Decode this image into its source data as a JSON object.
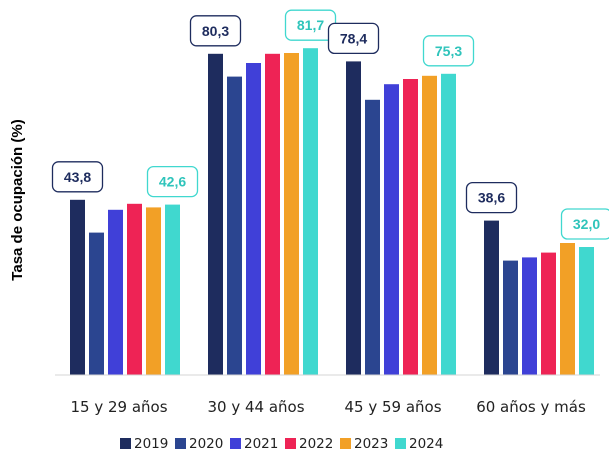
{
  "chart_data": {
    "type": "bar",
    "title": "",
    "xlabel": "",
    "ylabel": "Tasa de ocupación (%)",
    "ylim": [
      0,
      90
    ],
    "grid": false,
    "legend_position": "bottom",
    "categories": [
      "15 y 29 años",
      "30 y 44 años",
      "45 y 59 años",
      "60 años y más"
    ],
    "series": [
      {
        "name": "2019",
        "color": "#1e2c5e",
        "values": [
          43.8,
          80.3,
          78.4,
          38.6
        ]
      },
      {
        "name": "2020",
        "color": "#2b4590",
        "values": [
          35.6,
          74.6,
          68.8,
          28.6
        ]
      },
      {
        "name": "2021",
        "color": "#4040d8",
        "values": [
          41.3,
          78.0,
          72.7,
          29.4
        ]
      },
      {
        "name": "2022",
        "color": "#ee2355",
        "values": [
          42.8,
          80.3,
          74.0,
          30.6
        ]
      },
      {
        "name": "2023",
        "color": "#f2a026",
        "values": [
          41.9,
          80.5,
          74.8,
          33.0
        ]
      },
      {
        "name": "2024",
        "color": "#40d8cf",
        "values": [
          42.6,
          81.7,
          75.3,
          32.0
        ]
      }
    ],
    "data_labels": [
      {
        "category_index": 0,
        "series_index": 0,
        "text": "43,8"
      },
      {
        "category_index": 0,
        "series_index": 5,
        "text": "42,6"
      },
      {
        "category_index": 1,
        "series_index": 0,
        "text": "80,3"
      },
      {
        "category_index": 1,
        "series_index": 5,
        "text": "81,7"
      },
      {
        "category_index": 2,
        "series_index": 0,
        "text": "78,4"
      },
      {
        "category_index": 2,
        "series_index": 5,
        "text": "75,3"
      },
      {
        "category_index": 3,
        "series_index": 0,
        "text": "38,6"
      },
      {
        "category_index": 3,
        "series_index": 5,
        "text": "32,0"
      }
    ]
  }
}
